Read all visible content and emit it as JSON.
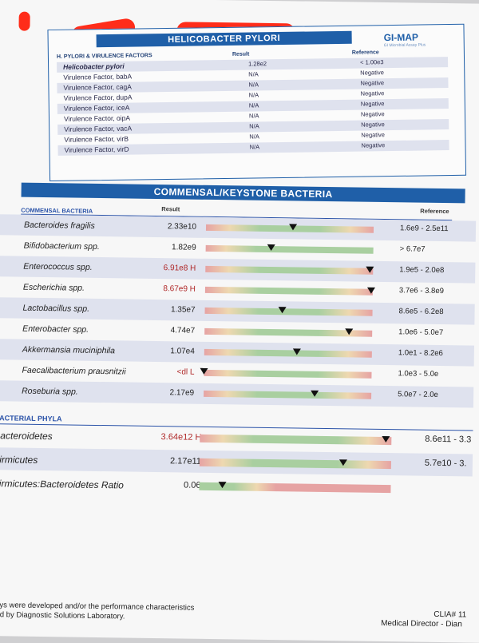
{
  "helicobacter": {
    "title": "HELICOBACTER PYLORI",
    "brand": "GI-MAP",
    "brand_sub": "GI Microbial Assay Plus",
    "col_name": "H. PYLORI & VIRULENCE FACTORS",
    "col_result": "Result",
    "col_reference": "Reference",
    "rows": [
      {
        "name": "Helicobacter pylori",
        "result": "1.28e2",
        "reference": "< 1.00e3"
      },
      {
        "name": "Virulence Factor, babA",
        "result": "N/A",
        "reference": "Negative"
      },
      {
        "name": "Virulence Factor, cagA",
        "result": "N/A",
        "reference": "Negative"
      },
      {
        "name": "Virulence Factor, dupA",
        "result": "N/A",
        "reference": "Negative"
      },
      {
        "name": "Virulence Factor, iceA",
        "result": "N/A",
        "reference": "Negative"
      },
      {
        "name": "Virulence Factor, oipA",
        "result": "N/A",
        "reference": "Negative"
      },
      {
        "name": "Virulence Factor, vacA",
        "result": "N/A",
        "reference": "Negative"
      },
      {
        "name": "Virulence Factor, virB",
        "result": "N/A",
        "reference": "Negative"
      },
      {
        "name": "Virulence Factor, virD",
        "result": "N/A",
        "reference": "Negative"
      }
    ]
  },
  "commensal": {
    "title": "COMMENSAL/KEYSTONE BACTERIA",
    "section": "COMMENSAL BACTERIA",
    "col_result": "Result",
    "col_reference": "Reference",
    "rows": [
      {
        "name": "Bacteroides fragilis",
        "result": "2.33e10",
        "reference": "1.6e9 - 2.5e11",
        "flag": "",
        "marker": 0.52
      },
      {
        "name": "Bifidobacterium spp.",
        "result": "1.82e9",
        "reference": "> 6.7e7",
        "flag": "",
        "marker": 0.39
      },
      {
        "name": "Enterococcus spp.",
        "result": "6.91e8 H",
        "reference": "1.9e5 - 2.0e8",
        "flag": "H",
        "marker": 0.98
      },
      {
        "name": "Escherichia spp.",
        "result": "8.67e9 H",
        "reference": "3.7e6 - 3.8e9",
        "flag": "H",
        "marker": 0.99
      },
      {
        "name": "Lactobacillus spp.",
        "result": "1.35e7",
        "reference": "8.6e5 - 6.2e8",
        "flag": "",
        "marker": 0.46
      },
      {
        "name": "Enterobacter spp.",
        "result": "4.74e7",
        "reference": "1.0e6 - 5.0e7",
        "flag": "",
        "marker": 0.86
      },
      {
        "name": "Akkermansia muciniphila",
        "result": "1.07e4",
        "reference": "1.0e1 - 8.2e6",
        "flag": "",
        "marker": 0.55
      },
      {
        "name": "Faecalibacterium prausnitzii",
        "result": "<dl L",
        "reference": "1.0e3 - 5.0e",
        "flag": "L",
        "marker": 0.0
      },
      {
        "name": "Roseburia spp.",
        "result": "2.17e9",
        "reference": "5.0e7 - 2.0e",
        "flag": "",
        "marker": 0.66
      }
    ]
  },
  "phyla": {
    "title": "BACTERIAL PHYLA",
    "rows": [
      {
        "name": "Bacteroidetes",
        "result": "3.64e12 H",
        "reference": "8.6e11 - 3.3",
        "flag": "H",
        "marker": 0.97
      },
      {
        "name": "Firmicutes",
        "result": "2.17e11",
        "reference": "5.7e10 - 3.",
        "flag": "",
        "marker": 0.75
      },
      {
        "name": "Firmicutes:Bacteroidetes Ratio",
        "result": "0.06",
        "reference": "",
        "flag": "",
        "marker": 0.12
      }
    ]
  },
  "footer": {
    "line1": "says were developed and/or the performance characteristics",
    "line2": "ned by Diagnostic Solutions Laboratory.",
    "clia": "CLIA# 11",
    "director": "Medical Director - Dian"
  }
}
